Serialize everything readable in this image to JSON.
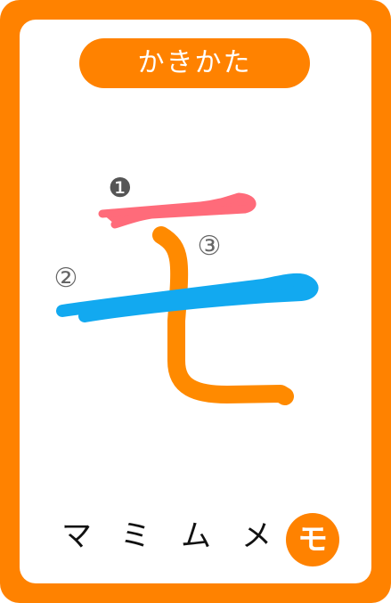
{
  "title": "かきかた",
  "character": "モ",
  "stroke_numbers": [
    "❶",
    "②",
    "③"
  ],
  "row": {
    "others": [
      "マ",
      "ミ",
      "ム",
      "メ"
    ],
    "current": "モ"
  },
  "colors": {
    "frame": "#ff8200",
    "stroke1": "#ff6b7a",
    "stroke2": "#12a9f0",
    "stroke3": "#ff8a00"
  }
}
